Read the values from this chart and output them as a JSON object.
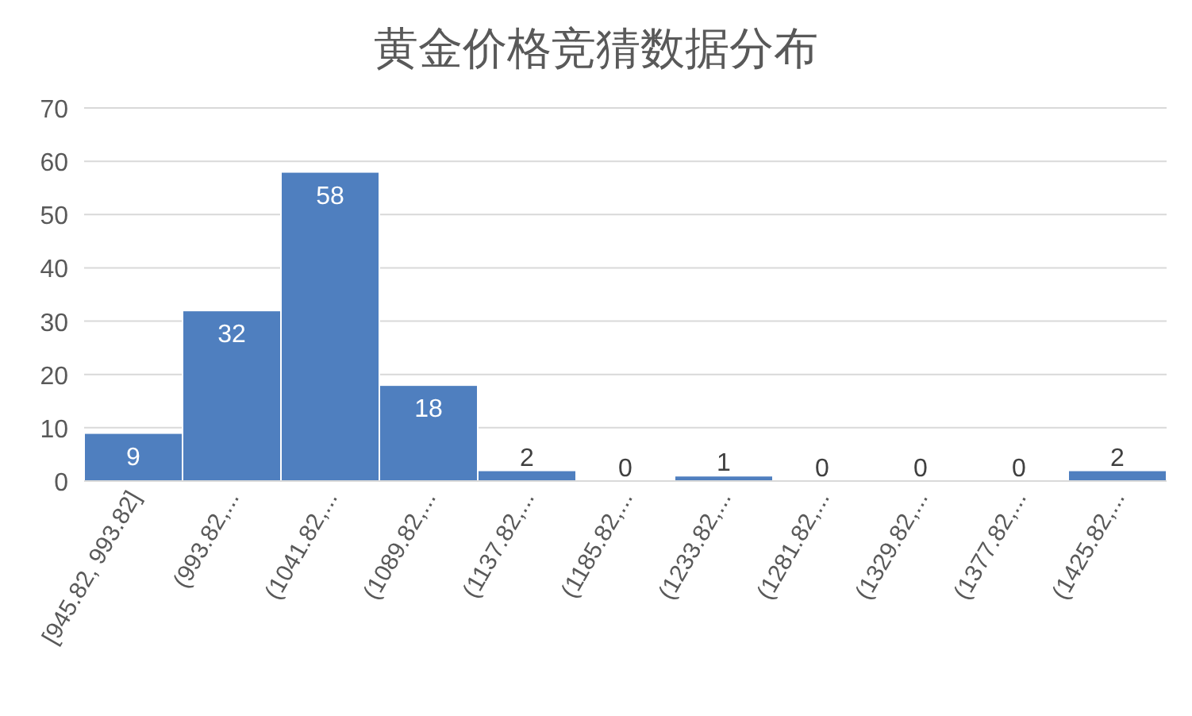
{
  "chart_data": {
    "type": "bar",
    "title": "黄金价格竞猜数据分布",
    "categories": [
      "[945.82, 993.82]",
      "(993.82,...",
      "(1041.82,...",
      "(1089.82,...",
      "(1137.82,...",
      "(1185.82,...",
      "(1233.82,...",
      "(1281.82,...",
      "(1329.82,...",
      "(1377.82,...",
      "(1425.82,..."
    ],
    "values": [
      9,
      32,
      58,
      18,
      2,
      0,
      1,
      0,
      0,
      0,
      2
    ],
    "color": "#4f7fbf",
    "ylim": [
      0,
      70
    ],
    "yticks": [
      0,
      10,
      20,
      30,
      40,
      50,
      60,
      70
    ],
    "grid": "y",
    "data_labels": true
  }
}
